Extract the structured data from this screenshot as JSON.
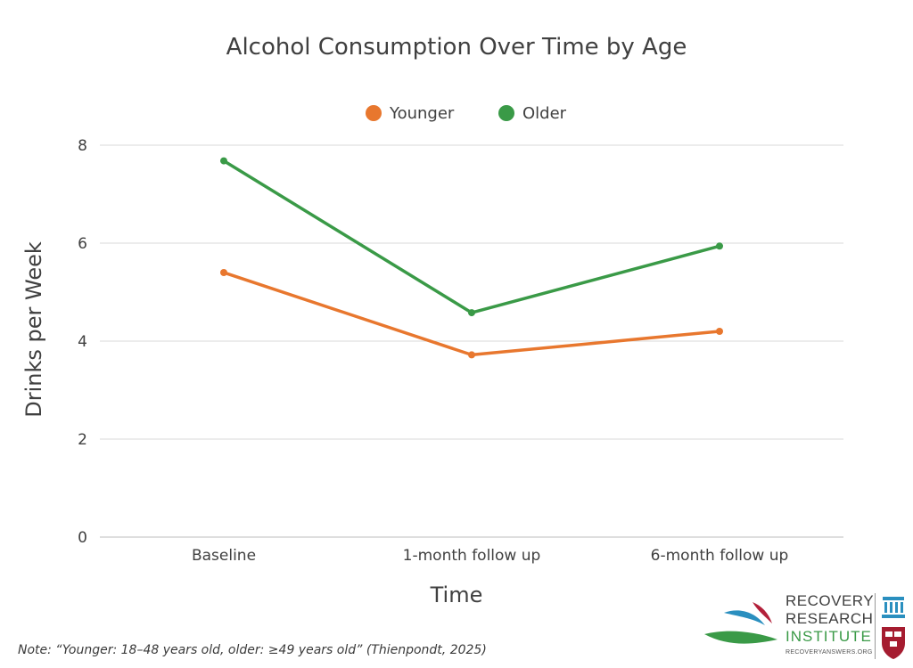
{
  "chart_data": {
    "type": "line",
    "title": "Alcohol Consumption Over Time by Age",
    "xlabel": "Time",
    "ylabel": "Drinks per Week",
    "categories": [
      "Baseline",
      "1-month follow up",
      "6-month follow up"
    ],
    "ylim": [
      0,
      8
    ],
    "yticks": [
      0,
      2,
      4,
      6,
      8
    ],
    "grid": true,
    "legend_position": "top-center",
    "series": [
      {
        "name": "Younger",
        "color": "#e8772e",
        "values": [
          5.4,
          3.72,
          4.2
        ]
      },
      {
        "name": "Older",
        "color": "#3a9a47",
        "values": [
          7.68,
          4.58,
          5.94
        ]
      }
    ]
  },
  "note": "Note: “Younger: 18–48 years old, older: ≥49 years old” (Thienpondt, 2025)",
  "logo": {
    "line1": "RECOVERY",
    "line2": "RESEARCH",
    "line3": "INSTITUTE",
    "url": "RECOVERYANSWERS.ORG",
    "colors": {
      "blue": "#2a8fbf",
      "red": "#b3203a",
      "green": "#3a9a47"
    },
    "icons": [
      "swoosh-emblem-icon",
      "building-icon",
      "shield-crest-icon"
    ]
  }
}
